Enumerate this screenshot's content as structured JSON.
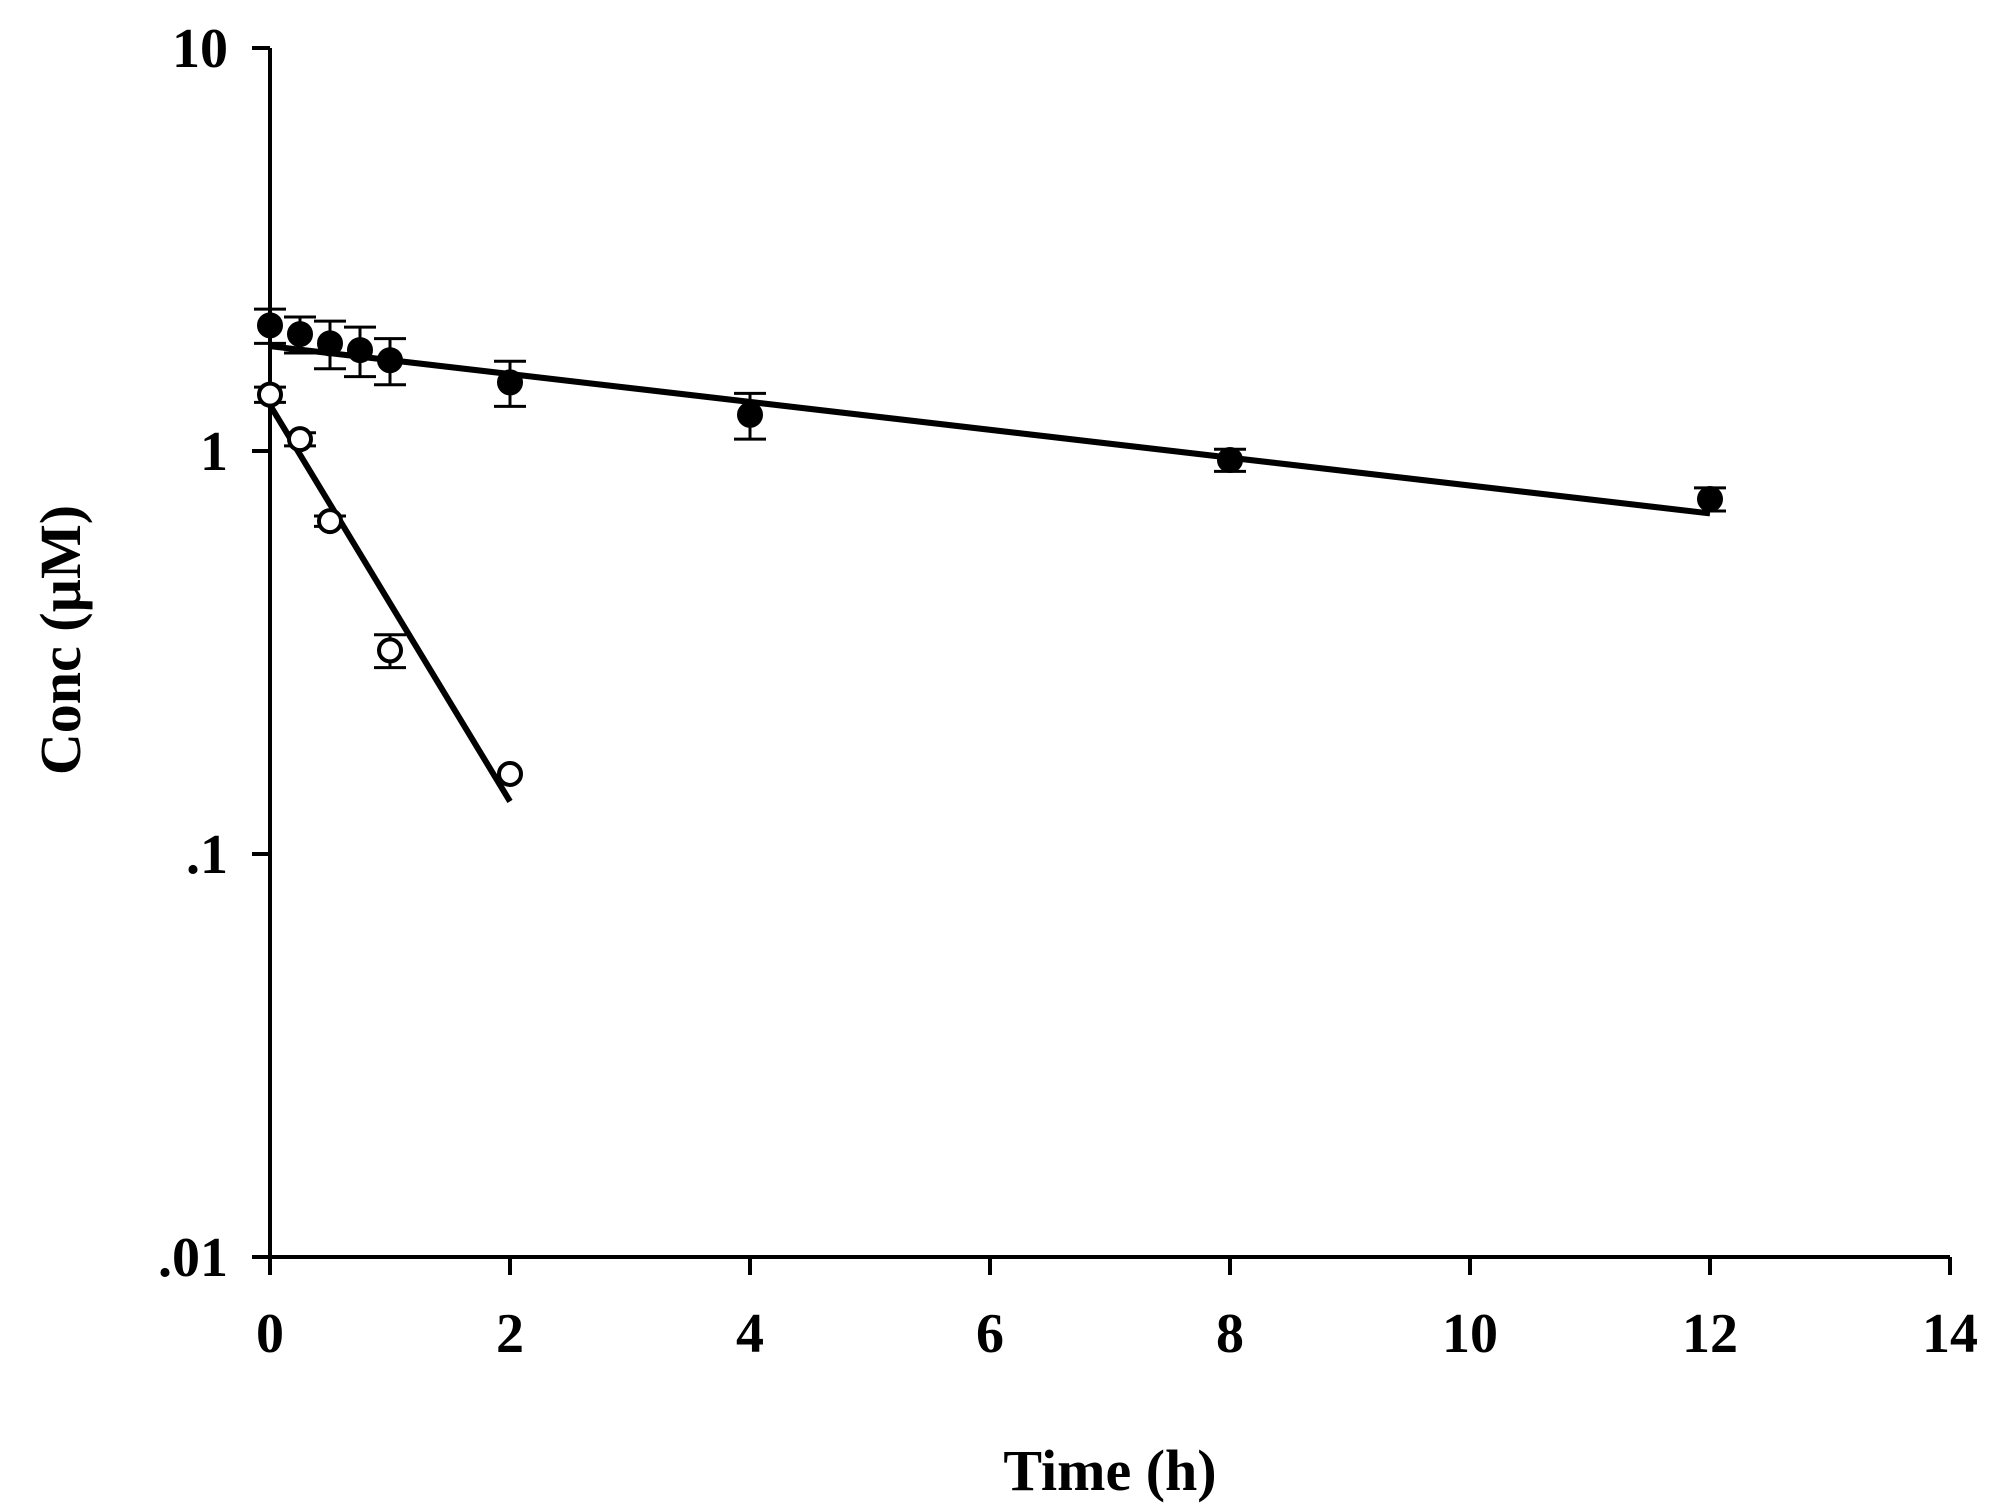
{
  "chart_data": {
    "type": "scatter",
    "title": "",
    "xlabel": "Time (h)",
    "ylabel": "Conc (µM)",
    "xlim": [
      0,
      14
    ],
    "ylim": [
      0.01,
      10
    ],
    "yscale": "log",
    "x_ticks": [
      0,
      2,
      4,
      6,
      8,
      10,
      12,
      14
    ],
    "x_tick_labels": [
      "0",
      "2",
      "4",
      "6",
      "8",
      "10",
      "12",
      "14"
    ],
    "y_ticks": [
      10,
      1,
      0.1,
      0.01
    ],
    "y_tick_labels": [
      "10",
      "1",
      ".1",
      ".01"
    ],
    "grid": false,
    "series": [
      {
        "name": "filled",
        "marker": "filled-circle",
        "x": [
          0,
          0.25,
          0.5,
          0.75,
          1,
          2,
          4,
          8,
          12
        ],
        "y": [
          2.05,
          1.95,
          1.85,
          1.78,
          1.68,
          1.48,
          1.23,
          0.95,
          0.76
        ],
        "error": [
          0.2,
          0.2,
          0.25,
          0.25,
          0.22,
          0.19,
          0.16,
          0.06,
          0.05
        ],
        "fit": {
          "x": [
            0,
            12
          ],
          "y": [
            1.82,
            0.7
          ]
        }
      },
      {
        "name": "open",
        "marker": "open-circle",
        "x": [
          0,
          0.25,
          0.5,
          1,
          2
        ],
        "y": [
          1.38,
          1.07,
          0.67,
          0.32,
          0.158
        ],
        "error": [
          0.06,
          0.04,
          0.02,
          0.03,
          0.0
        ],
        "fit": {
          "x": [
            0,
            2
          ],
          "y": [
            1.3,
            0.135
          ]
        }
      }
    ]
  }
}
